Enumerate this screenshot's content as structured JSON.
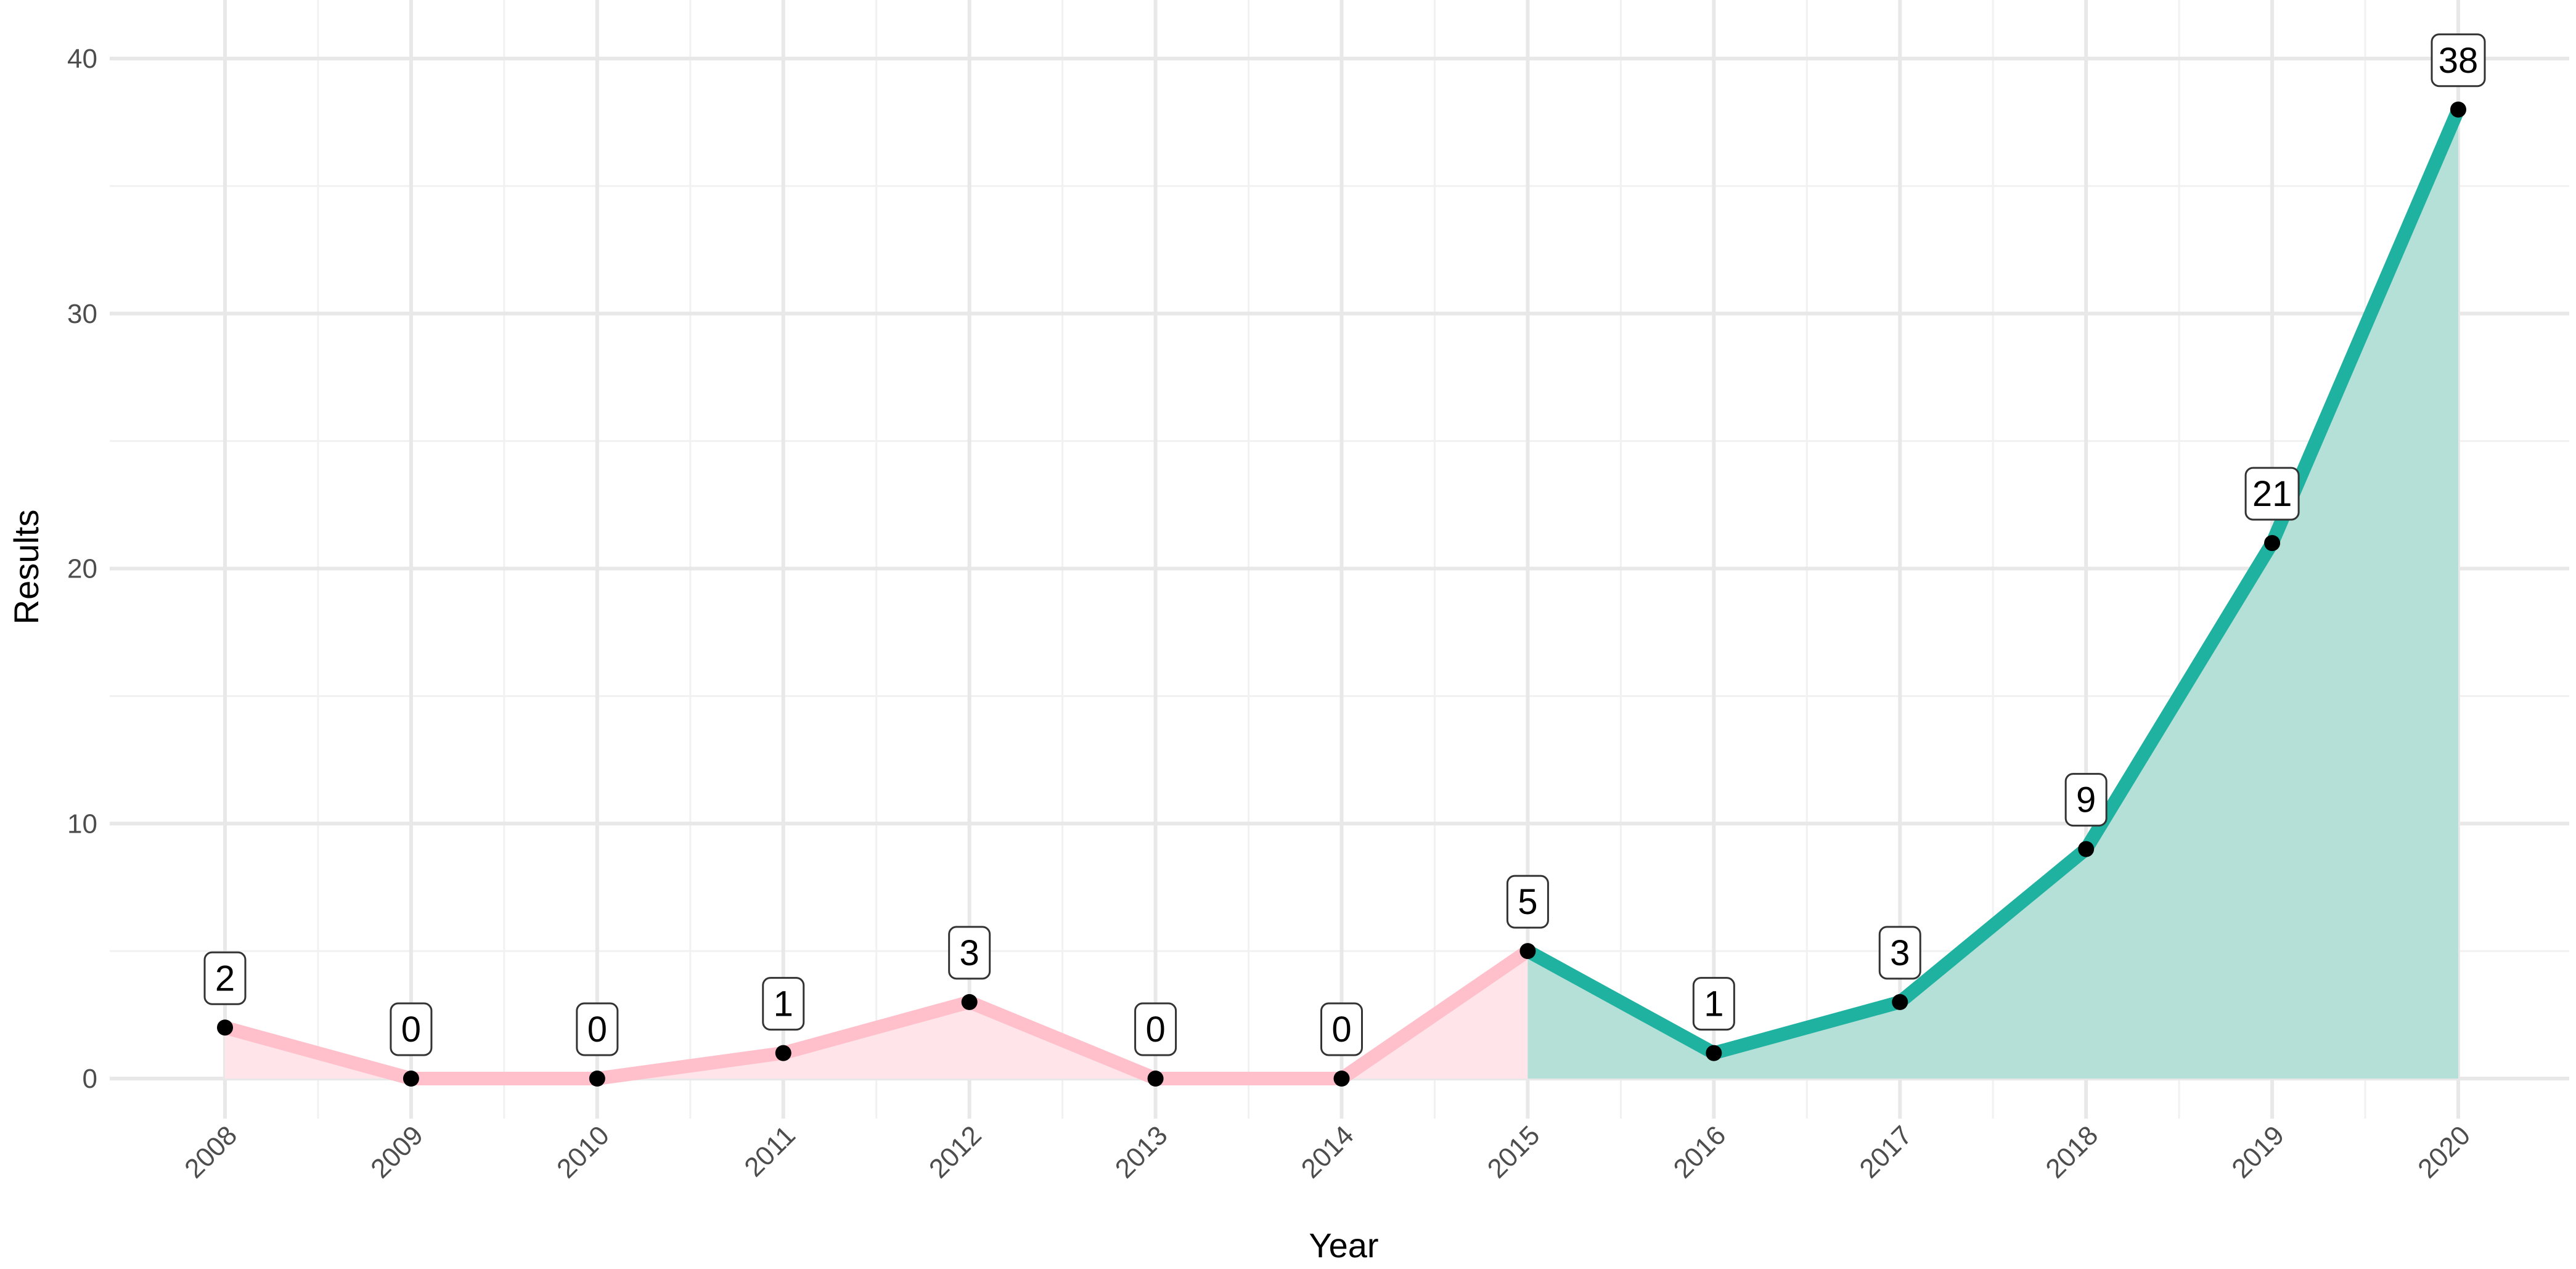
{
  "chart_data": {
    "type": "line",
    "title": "",
    "xlabel": "Year",
    "ylabel": "Results",
    "x": [
      2008,
      2009,
      2010,
      2011,
      2012,
      2013,
      2014,
      2015,
      2016,
      2017,
      2018,
      2019,
      2020
    ],
    "values": [
      2,
      0,
      0,
      1,
      3,
      0,
      0,
      5,
      1,
      3,
      9,
      21,
      38
    ],
    "segments": [
      {
        "from": 2008,
        "to": 2015,
        "color": "#ffc0cb",
        "fill": "#ffe4e9"
      },
      {
        "from": 2015,
        "to": 2020,
        "color": "#20b2a0",
        "fill": "#b5e0d8"
      }
    ],
    "point_color": "#000000",
    "xlim": [
      2008,
      2020
    ],
    "ylim": [
      0,
      40
    ],
    "yticks": [
      0,
      10,
      20,
      30,
      40
    ],
    "x_tick_labels": [
      "2008",
      "2009",
      "2010",
      "2011",
      "2012",
      "2013",
      "2014",
      "2015",
      "2016",
      "2017",
      "2018",
      "2019",
      "2020"
    ],
    "y_tick_labels": [
      "0",
      "10",
      "20",
      "30",
      "40"
    ],
    "data_labels": [
      "2",
      "0",
      "0",
      "1",
      "3",
      "0",
      "0",
      "5",
      "1",
      "3",
      "9",
      "21",
      "38"
    ],
    "grid": true,
    "legend": "none"
  }
}
